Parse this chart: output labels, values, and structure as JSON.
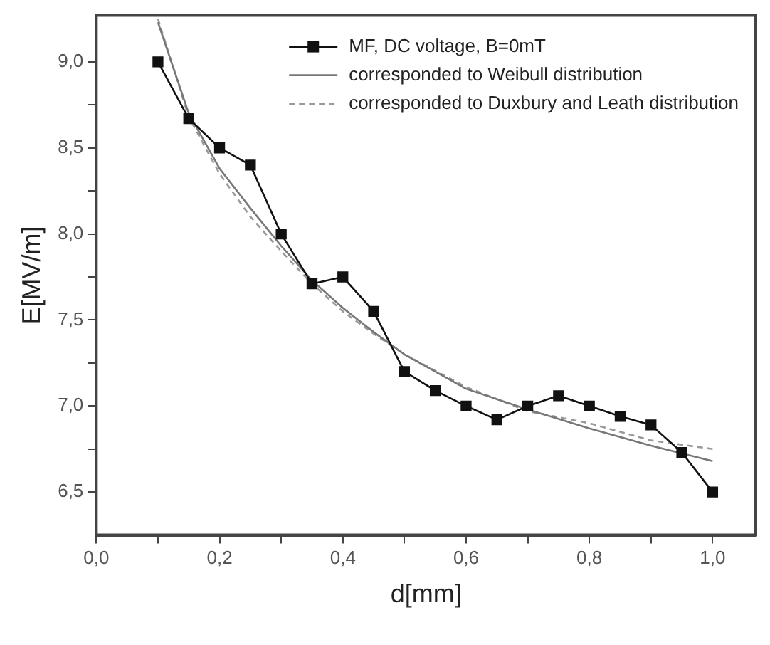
{
  "chart_data": {
    "type": "line",
    "xlabel": "d[mm]",
    "ylabel": "E[MV/m]",
    "xlim": [
      0,
      1.07
    ],
    "ylim": [
      6.25,
      9.27
    ],
    "xticks": [
      {
        "value": 0,
        "label": "0,0"
      },
      {
        "value": 0.1,
        "label": null
      },
      {
        "value": 0.2,
        "label": "0,2"
      },
      {
        "value": 0.3,
        "label": null
      },
      {
        "value": 0.4,
        "label": "0,4"
      },
      {
        "value": 0.5,
        "label": null
      },
      {
        "value": 0.6,
        "label": "0,6"
      },
      {
        "value": 0.7,
        "label": null
      },
      {
        "value": 0.8,
        "label": "0,8"
      },
      {
        "value": 0.9,
        "label": null
      },
      {
        "value": 1.0,
        "label": "1,0"
      }
    ],
    "yticks": [
      {
        "value": 6.5,
        "label": "6,5"
      },
      {
        "value": 6.75,
        "label": null
      },
      {
        "value": 7.0,
        "label": "7,0"
      },
      {
        "value": 7.25,
        "label": null
      },
      {
        "value": 7.5,
        "label": "7,5"
      },
      {
        "value": 7.75,
        "label": null
      },
      {
        "value": 8.0,
        "label": "8,0"
      },
      {
        "value": 8.25,
        "label": null
      },
      {
        "value": 8.5,
        "label": "8,5"
      },
      {
        "value": 8.75,
        "label": null
      },
      {
        "value": 9.0,
        "label": "9,0"
      }
    ],
    "grid": false,
    "legend": "top right",
    "series": [
      {
        "name": "MF, DC voltage, B=0mT",
        "color": "#111111",
        "marker": "square",
        "line_style": "solid",
        "x": [
          0.1,
          0.15,
          0.2,
          0.25,
          0.3,
          0.35,
          0.4,
          0.45,
          0.5,
          0.55,
          0.6,
          0.65,
          0.7,
          0.75,
          0.8,
          0.85,
          0.9,
          0.95,
          1.0
        ],
        "values": [
          9.0,
          8.67,
          8.5,
          8.4,
          8.0,
          7.71,
          7.75,
          7.55,
          7.2,
          7.09,
          7.0,
          6.92,
          7.0,
          7.06,
          7.0,
          6.94,
          6.89,
          6.73,
          6.5
        ]
      },
      {
        "name": "corresponded to Weibull distribution",
        "color": "#777777",
        "marker": "none",
        "line_style": "solid",
        "x": [
          0.1,
          0.15,
          0.2,
          0.25,
          0.3,
          0.35,
          0.4,
          0.45,
          0.5,
          0.6,
          0.7,
          0.8,
          0.9,
          1.0
        ],
        "values": [
          9.23,
          8.7,
          8.38,
          8.15,
          7.93,
          7.73,
          7.57,
          7.43,
          7.3,
          7.1,
          6.98,
          6.87,
          6.77,
          6.68
        ]
      },
      {
        "name": "corresponded to Duxbury and Leath distribution",
        "color": "#999999",
        "marker": "none",
        "line_style": "dashed",
        "x": [
          0.1,
          0.15,
          0.2,
          0.25,
          0.3,
          0.35,
          0.4,
          0.45,
          0.5,
          0.6,
          0.7,
          0.8,
          0.9,
          1.0
        ],
        "values": [
          9.25,
          8.68,
          8.35,
          8.1,
          7.9,
          7.71,
          7.55,
          7.42,
          7.3,
          7.11,
          6.97,
          6.9,
          6.8,
          6.75
        ]
      }
    ]
  }
}
